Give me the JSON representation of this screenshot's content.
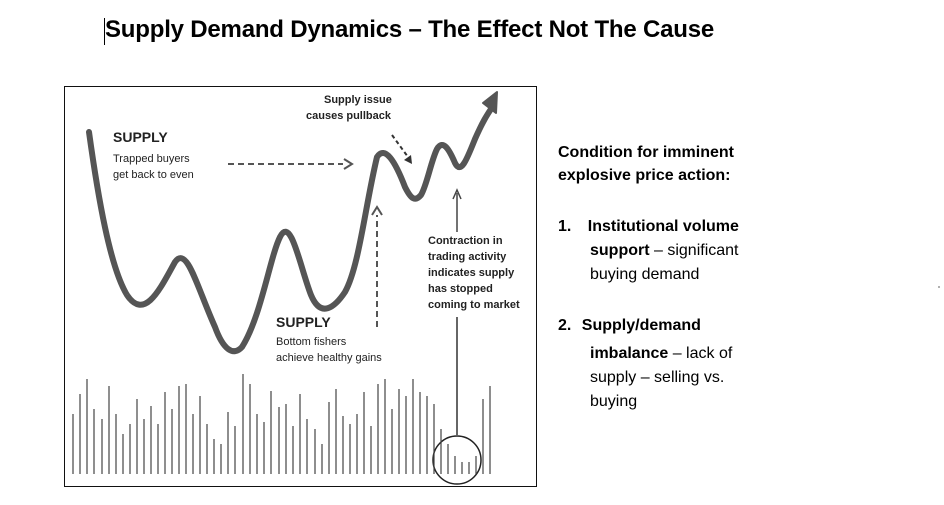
{
  "title": "Supply Demand Dynamics – The Effect Not The Cause",
  "diagram": {
    "supply_top_heading": "SUPPLY",
    "supply_top_text_1": "Trapped buyers",
    "supply_top_text_2": "get back to even",
    "supply_issue_1": "Supply issue",
    "supply_issue_2": "causes pullback",
    "supply_bottom_heading": "SUPPLY",
    "supply_bottom_text_1": "Bottom fishers",
    "supply_bottom_text_2": "achieve healthy gains",
    "contraction_lines": [
      "Contraction in",
      "trading activity",
      "indicates supply",
      "has stopped",
      "coming to market"
    ]
  },
  "side": {
    "heading_1": "Condition for imminent",
    "heading_2": "explosive price action:",
    "item1_number": "1.",
    "item1_bold_a": "Institutional  volume",
    "item1_bold_b": "support",
    "item1_rest_b": " – significant",
    "item1_line3": "buying demand",
    "item2_number": "2.",
    "item2_bold_a": "Supply/demand",
    "item2_bold_b": "imbalance",
    "item2_rest_b": " – lack of",
    "item2_line3": "supply – selling vs.",
    "item2_line4": "buying"
  }
}
